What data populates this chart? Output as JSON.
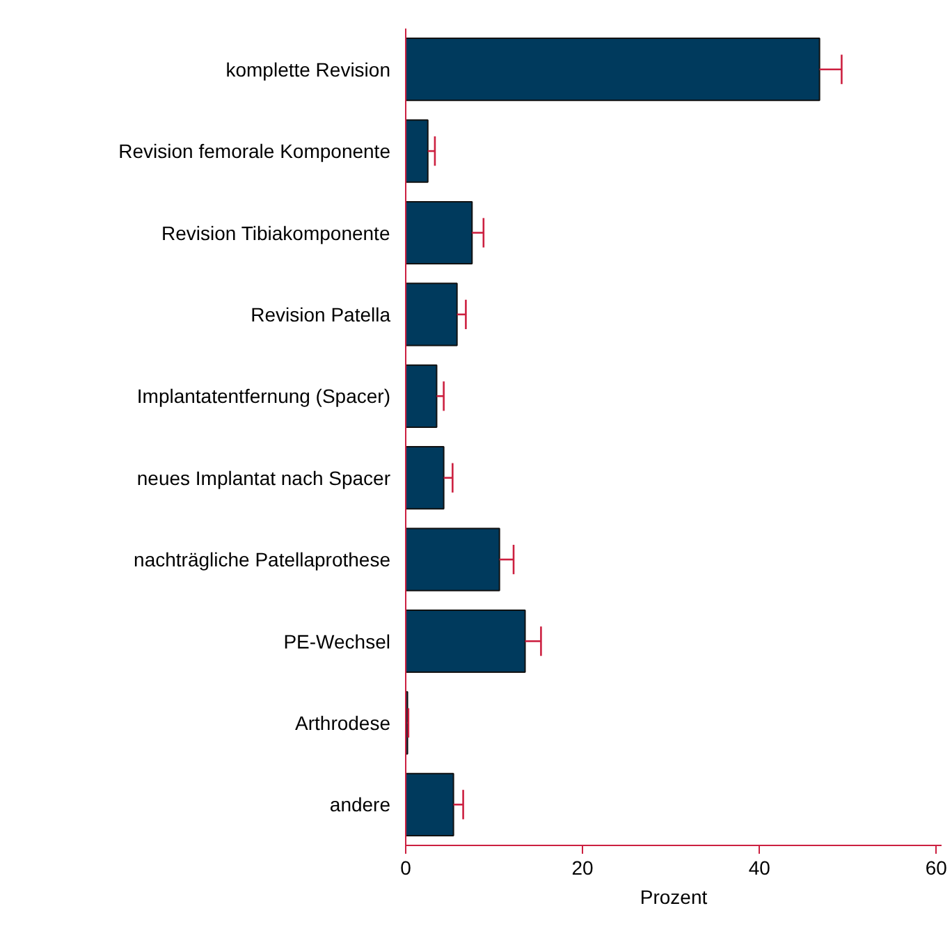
{
  "chart_data": {
    "type": "bar",
    "orientation": "horizontal",
    "xlabel": "Prozent",
    "categories": [
      "komplette Revision",
      "Revision femorale Komponente",
      "Revision Tibiakomponente",
      "Revision Patella",
      "Implantatentfernung (Spacer)",
      "neues Implantat nach Spacer",
      "nachträgliche Patellaprothese",
      "PE-Wechsel",
      "Arthrodese",
      "andere"
    ],
    "values": [
      46.8,
      2.5,
      7.5,
      5.8,
      3.5,
      4.3,
      10.6,
      13.5,
      0.2,
      5.4
    ],
    "errors": [
      [
        46.8,
        49.3
      ],
      [
        2.5,
        3.3
      ],
      [
        7.5,
        8.8
      ],
      [
        5.8,
        6.8
      ],
      [
        3.5,
        4.3
      ],
      [
        4.3,
        5.3
      ],
      [
        10.6,
        12.2
      ],
      [
        13.5,
        15.3
      ],
      [
        0.2,
        0.3
      ],
      [
        5.4,
        6.5
      ]
    ],
    "color": "#003a5d",
    "xlim": [
      0,
      60.6
    ],
    "xticks": [
      0,
      20,
      40,
      60
    ],
    "grid": false
  }
}
